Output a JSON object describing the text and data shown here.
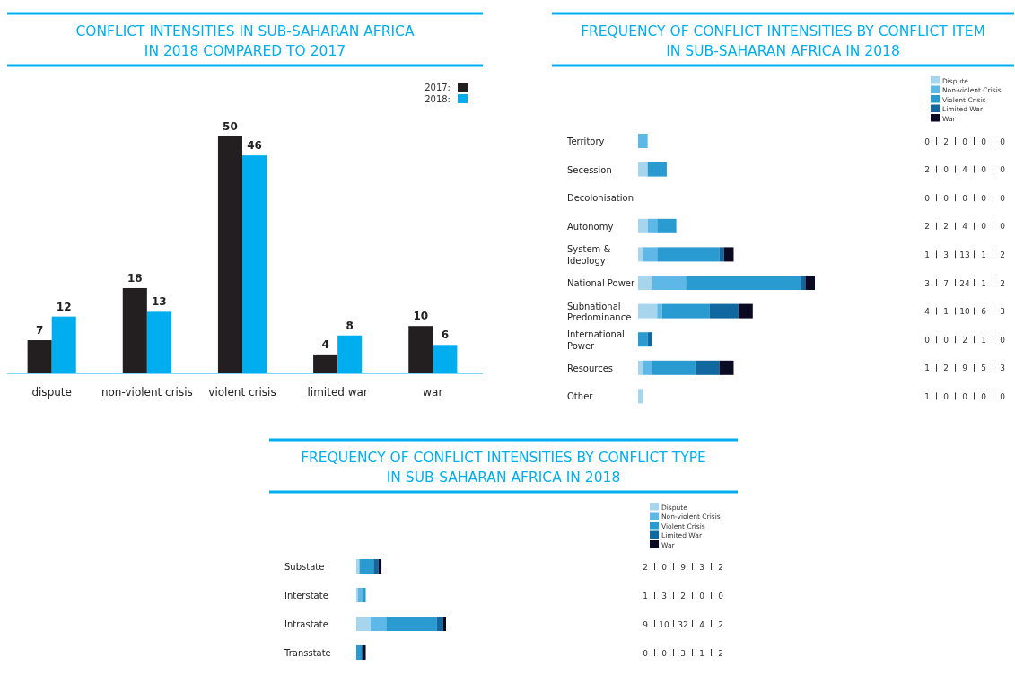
{
  "chart_data": [
    {
      "type": "bar",
      "title": "CONFLICT INTENSITIES IN SUB-SAHARAN AFRICA IN 2018 COMPARED TO 2017",
      "categories": [
        "dispute",
        "non-violent crisis",
        "violent crisis",
        "limited war",
        "war"
      ],
      "series": [
        {
          "name": "2017:",
          "color": "#231f20",
          "values": [
            7,
            18,
            50,
            4,
            10
          ]
        },
        {
          "name": "2018:",
          "color": "#00aeef",
          "values": [
            12,
            13,
            46,
            8,
            6
          ]
        }
      ],
      "data_labels": true,
      "legend": "top right"
    },
    {
      "type": "bar",
      "title": "FREQUENCY OF CONFLICT INTENSITIES BY CONFLICT ITEM IN SUB-SAHARAN AFRICA IN 2018",
      "orientation": "horizontal",
      "stacked": true,
      "categories": [
        "Territory",
        "Secession",
        "Decolonisation",
        "Autonomy",
        "System & Ideology",
        "National Power",
        "Subnational Predominance",
        "International Power",
        "Resources",
        "Other"
      ],
      "series": [
        {
          "name": "Dispute",
          "color": "#a8d5ee",
          "values": [
            0,
            2,
            0,
            2,
            1,
            3,
            4,
            0,
            1,
            1
          ]
        },
        {
          "name": "Non-violent Crisis",
          "color": "#5db8e8",
          "values": [
            2,
            0,
            0,
            2,
            3,
            7,
            1,
            0,
            2,
            0
          ]
        },
        {
          "name": "Violent Crisis",
          "color": "#2a9bd0",
          "values": [
            0,
            4,
            0,
            4,
            13,
            24,
            10,
            2,
            9,
            0
          ]
        },
        {
          "name": "Limited War",
          "color": "#11679f",
          "values": [
            0,
            0,
            0,
            0,
            1,
            1,
            6,
            1,
            5,
            0
          ]
        },
        {
          "name": "War",
          "color": "#0a0a23",
          "values": [
            0,
            0,
            0,
            0,
            2,
            2,
            3,
            0,
            3,
            0
          ]
        }
      ],
      "data_labels": true,
      "legend": "top right"
    },
    {
      "type": "bar",
      "title": "FREQUENCY OF CONFLICT INTENSITIES BY CONFLICT TYPE IN SUB-SAHARAN AFRICA IN 2018",
      "orientation": "horizontal",
      "stacked": true,
      "categories": [
        "Substate",
        "Interstate",
        "Intrastate",
        "Transstate"
      ],
      "series": [
        {
          "name": "Dispute",
          "color": "#a8d5ee",
          "values": [
            2,
            1,
            9,
            0
          ]
        },
        {
          "name": "Non-violent Crisis",
          "color": "#5db8e8",
          "values": [
            0,
            3,
            10,
            0
          ]
        },
        {
          "name": "Violent Crisis",
          "color": "#2a9bd0",
          "values": [
            9,
            2,
            32,
            3
          ]
        },
        {
          "name": "Limited War",
          "color": "#11679f",
          "values": [
            3,
            0,
            4,
            1
          ]
        },
        {
          "name": "War",
          "color": "#0a0a23",
          "values": [
            2,
            0,
            2,
            2
          ]
        }
      ],
      "data_labels": true,
      "legend": "top right"
    }
  ]
}
